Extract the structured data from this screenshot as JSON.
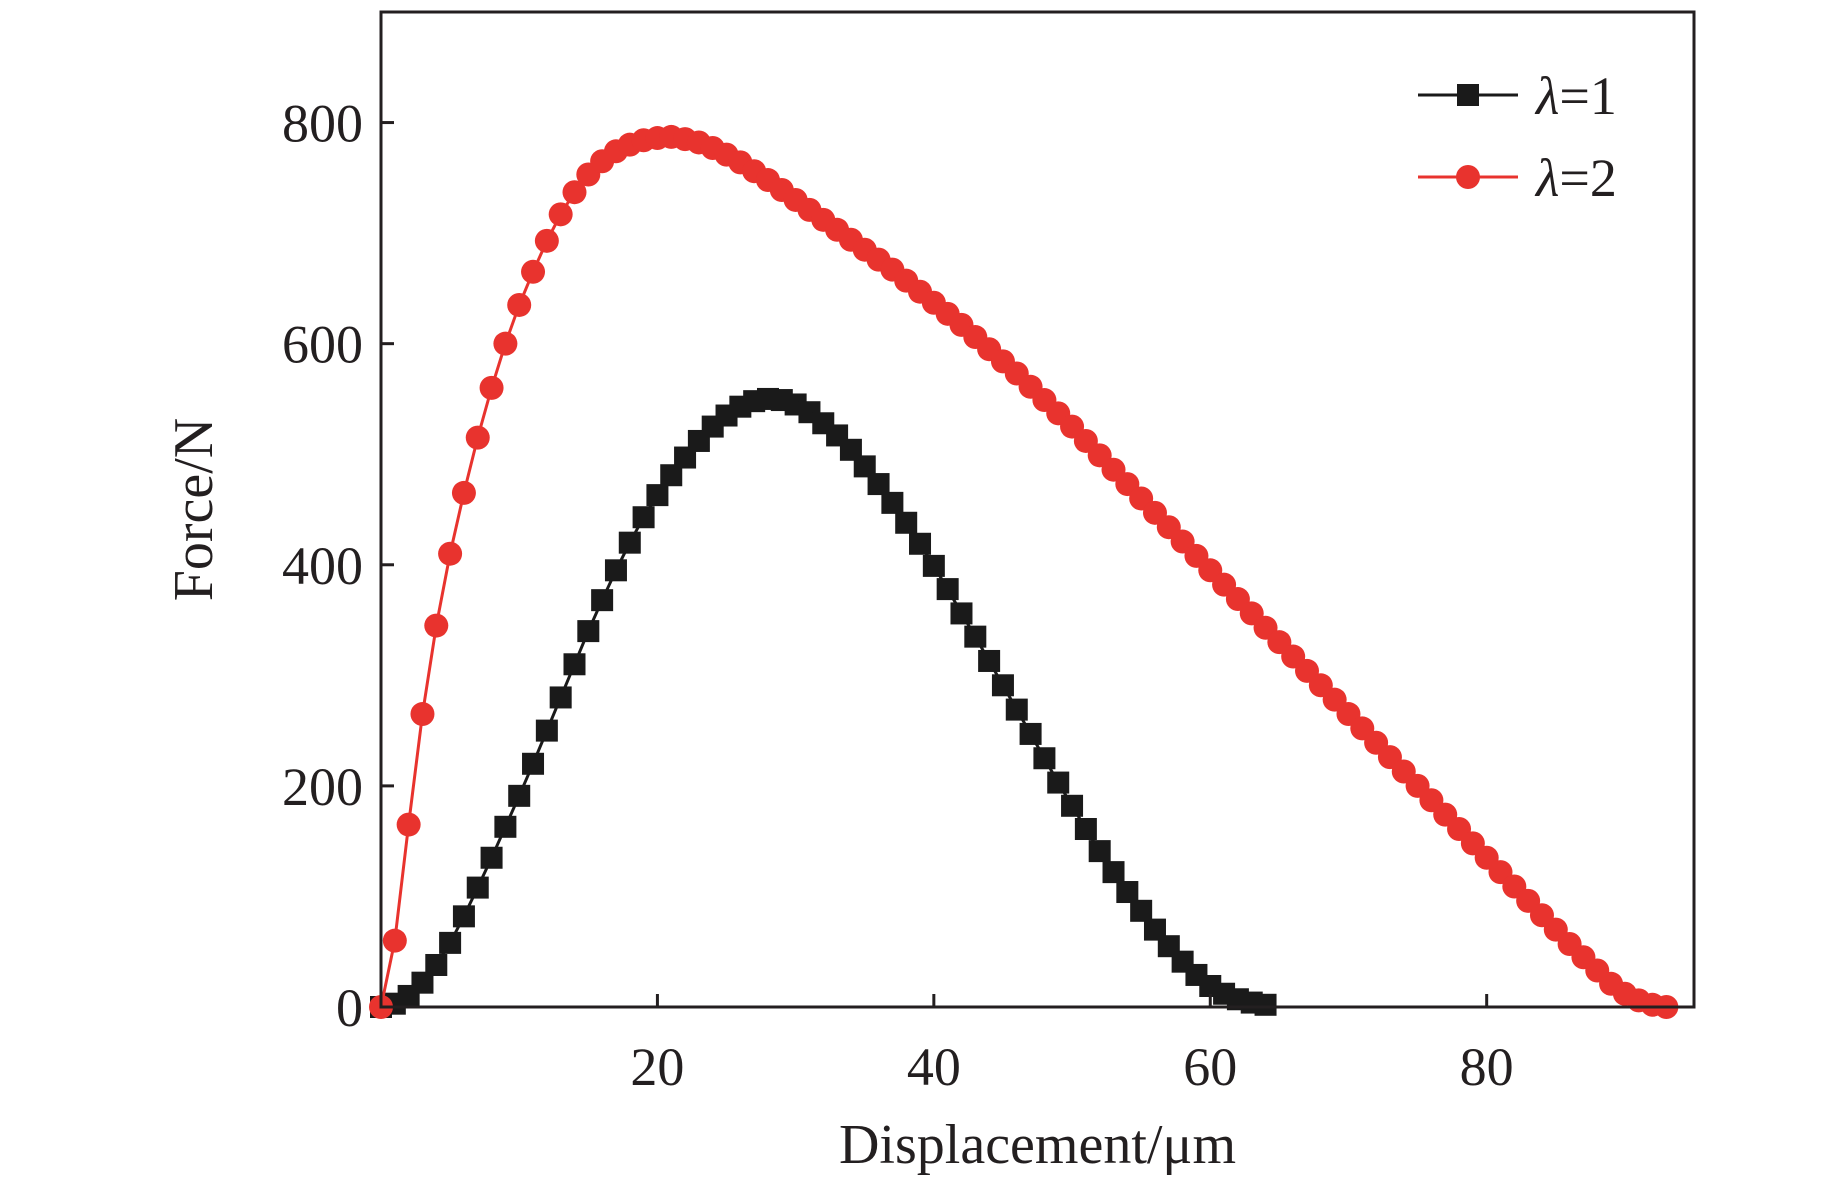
{
  "chart_data": {
    "type": "line",
    "xlabel": "Displacement/μm",
    "ylabel": "Force/N",
    "xlim": [
      0,
      95
    ],
    "ylim": [
      0,
      900
    ],
    "xticks": [
      20,
      40,
      60,
      80
    ],
    "yticks": [
      0,
      200,
      400,
      600,
      800
    ],
    "xtick_labels": [
      "20",
      "40",
      "60",
      "80"
    ],
    "ytick_labels": [
      "0",
      "200",
      "400",
      "600",
      "800"
    ],
    "legend_position": "top-right",
    "grid": false,
    "series": [
      {
        "name": "λ=1",
        "legend_symbol": "λ",
        "legend_value": "=1",
        "color": "#1a1a1a",
        "marker": "square",
        "x": [
          0,
          1,
          2,
          3,
          4,
          5,
          6,
          7,
          8,
          9,
          10,
          11,
          12,
          13,
          14,
          15,
          16,
          17,
          18,
          19,
          20,
          21,
          22,
          23,
          24,
          25,
          26,
          27,
          28,
          29,
          30,
          31,
          32,
          33,
          34,
          35,
          36,
          37,
          38,
          39,
          40,
          41,
          42,
          43,
          44,
          45,
          46,
          47,
          48,
          49,
          50,
          51,
          52,
          53,
          54,
          55,
          56,
          57,
          58,
          59,
          60,
          61,
          62,
          63,
          64
        ],
        "y": [
          0,
          3,
          10,
          22,
          38,
          58,
          82,
          108,
          135,
          163,
          191,
          220,
          250,
          280,
          310,
          340,
          368,
          395,
          420,
          443,
          463,
          481,
          497,
          512,
          525,
          535,
          543,
          548,
          550,
          549,
          545,
          538,
          528,
          517,
          504,
          489,
          473,
          456,
          438,
          419,
          399,
          378,
          356,
          335,
          313,
          291,
          269,
          247,
          225,
          203,
          182,
          161,
          141,
          122,
          104,
          87,
          70,
          55,
          41,
          29,
          19,
          12,
          7,
          4,
          2
        ]
      },
      {
        "name": "λ=2",
        "legend_symbol": "λ",
        "legend_value": "=2",
        "color": "#e8332e",
        "marker": "circle",
        "x": [
          0,
          1,
          2,
          3,
          4,
          5,
          6,
          7,
          8,
          9,
          10,
          11,
          12,
          13,
          14,
          15,
          16,
          17,
          18,
          19,
          20,
          21,
          22,
          23,
          24,
          25,
          26,
          27,
          28,
          29,
          30,
          31,
          32,
          33,
          34,
          35,
          36,
          37,
          38,
          39,
          40,
          41,
          42,
          43,
          44,
          45,
          46,
          47,
          48,
          49,
          50,
          51,
          52,
          53,
          54,
          55,
          56,
          57,
          58,
          59,
          60,
          61,
          62,
          63,
          64,
          65,
          66,
          67,
          68,
          69,
          70,
          71,
          72,
          73,
          74,
          75,
          76,
          77,
          78,
          79,
          80,
          81,
          82,
          83,
          84,
          85,
          86,
          87,
          88,
          89,
          90,
          91,
          92,
          93
        ],
        "y": [
          0,
          60,
          165,
          265,
          345,
          410,
          465,
          515,
          560,
          600,
          635,
          665,
          693,
          717,
          737,
          753,
          765,
          774,
          780,
          784,
          786,
          787,
          785,
          782,
          777,
          771,
          764,
          756,
          748,
          739,
          730,
          721,
          712,
          703,
          694,
          685,
          676,
          667,
          657,
          647,
          637,
          627,
          617,
          606,
          595,
          584,
          573,
          561,
          549,
          537,
          525,
          512,
          499,
          486,
          473,
          460,
          447,
          434,
          421,
          408,
          395,
          382,
          369,
          356,
          343,
          330,
          317,
          304,
          291,
          278,
          265,
          252,
          239,
          226,
          213,
          200,
          187,
          174,
          161,
          148,
          135,
          122,
          109,
          96,
          83,
          70,
          57,
          45,
          33,
          21,
          12,
          6,
          2,
          0
        ]
      }
    ]
  }
}
